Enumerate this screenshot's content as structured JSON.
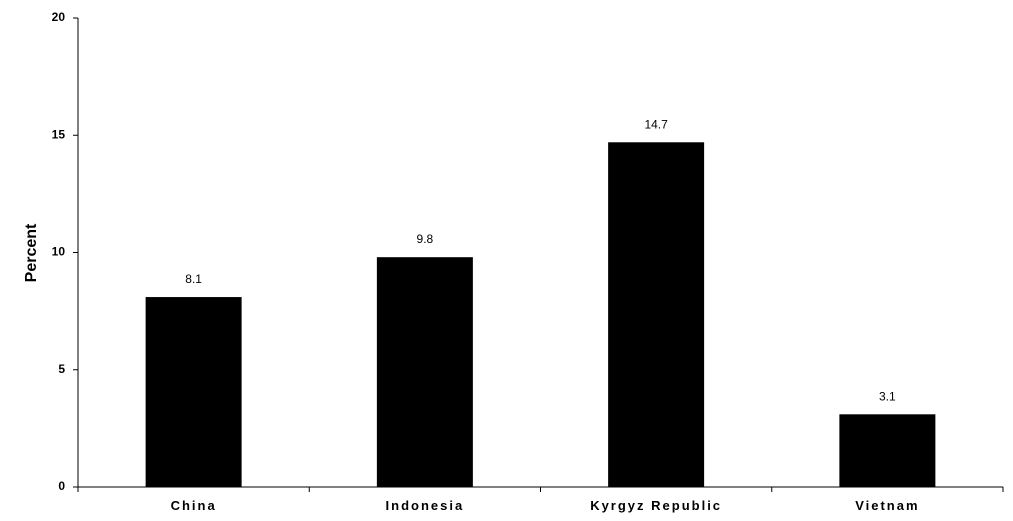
{
  "chart_data": {
    "type": "bar",
    "title": "",
    "xlabel": "",
    "ylabel": "Percent",
    "ylim": [
      0,
      20
    ],
    "yticks": [
      0,
      5,
      10,
      15,
      20
    ],
    "grid": false,
    "legend": "none",
    "categories": [
      "China",
      "Indonesia",
      "Kyrgyz Republic",
      "Vietnam"
    ],
    "values": [
      8.1,
      9.8,
      14.7,
      3.1
    ],
    "data_labels": [
      "8.1",
      "9.8",
      "14.7",
      "3.1"
    ],
    "colors": {
      "bar": "#000000",
      "axis": "#000000",
      "background": "#ffffff"
    }
  }
}
